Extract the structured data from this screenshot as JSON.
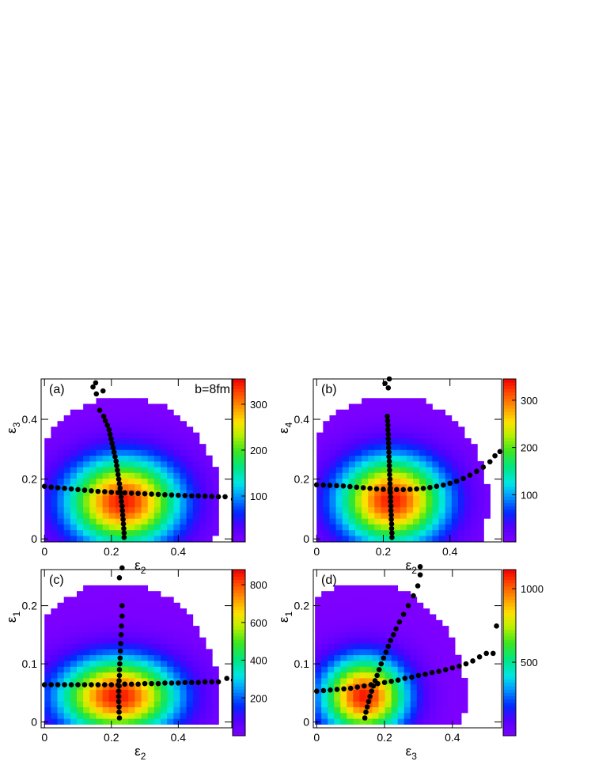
{
  "chart_data": [
    {
      "id": "a",
      "type": "heatmap",
      "panel_label": "(a)",
      "annotation": "b=8fm",
      "xlabel": "ε2",
      "ylabel": "ε3",
      "xlim": [
        -0.01,
        0.56
      ],
      "ylim": [
        -0.01,
        0.535
      ],
      "xticks": [
        {
          "v": 0,
          "label": "0"
        },
        {
          "v": 0.2,
          "label": "0.2"
        },
        {
          "v": 0.4,
          "label": "0.4"
        }
      ],
      "yticks": [
        {
          "v": 0,
          "label": "0"
        },
        {
          "v": 0.2,
          "label": "0.2"
        },
        {
          "v": 0.4,
          "label": "0.4"
        }
      ],
      "colorbar": {
        "min": 0,
        "max": 355,
        "ticks": [
          {
            "v": 100,
            "label": "100"
          },
          {
            "v": 200,
            "label": "200"
          },
          {
            "v": 300,
            "label": "300"
          }
        ]
      },
      "density": {
        "cx": 0.235,
        "cy": 0.125,
        "sx": 0.115,
        "sy": 0.1,
        "peak": 345,
        "nx": 28,
        "ny": 26,
        "xmin": 0.0,
        "xmax": 0.54,
        "ymin": -0.008,
        "ymax": 0.49,
        "rx": 0.29,
        "ry": 0.35
      },
      "profile_x": {
        "x": [
          0.0,
          0.02,
          0.04,
          0.06,
          0.08,
          0.1,
          0.12,
          0.14,
          0.16,
          0.18,
          0.2,
          0.22,
          0.24,
          0.26,
          0.28,
          0.3,
          0.32,
          0.34,
          0.36,
          0.38,
          0.4,
          0.42,
          0.44,
          0.46,
          0.48,
          0.5,
          0.52,
          0.54,
          0.565
        ],
        "y": [
          0.176,
          0.173,
          0.171,
          0.169,
          0.167,
          0.165,
          0.163,
          0.161,
          0.159,
          0.158,
          0.156,
          0.155,
          0.154,
          0.153,
          0.152,
          0.151,
          0.15,
          0.149,
          0.148,
          0.147,
          0.146,
          0.145,
          0.144,
          0.144,
          0.143,
          0.142,
          0.141,
          0.141,
          0.133
        ]
      },
      "profile_y": {
        "x": [
          0.238,
          0.238,
          0.237,
          0.236,
          0.235,
          0.234,
          0.233,
          0.232,
          0.23,
          0.229,
          0.227,
          0.226,
          0.224,
          0.222,
          0.22,
          0.218,
          0.216,
          0.214,
          0.211,
          0.208,
          0.205,
          0.202,
          0.199,
          0.196,
          0.193,
          0.188,
          0.182,
          0.177,
          0.165,
          0.155
        ],
        "y": [
          0.005,
          0.02,
          0.035,
          0.05,
          0.065,
          0.08,
          0.095,
          0.11,
          0.125,
          0.14,
          0.155,
          0.17,
          0.185,
          0.2,
          0.215,
          0.23,
          0.245,
          0.26,
          0.275,
          0.29,
          0.305,
          0.32,
          0.335,
          0.35,
          0.365,
          0.38,
          0.395,
          0.41,
          0.43,
          0.485
        ]
      },
      "extra_points": [
        [
          0.153,
          0.522
        ],
        [
          0.145,
          0.508
        ],
        [
          0.175,
          0.495
        ]
      ]
    },
    {
      "id": "b",
      "type": "heatmap",
      "panel_label": "(b)",
      "annotation": "",
      "xlabel": "ε2",
      "ylabel": "ε4",
      "xlim": [
        -0.01,
        0.555
      ],
      "ylim": [
        -0.01,
        0.535
      ],
      "xticks": [
        {
          "v": 0,
          "label": "0"
        },
        {
          "v": 0.2,
          "label": "0.2"
        },
        {
          "v": 0.4,
          "label": "0.4"
        }
      ],
      "yticks": [
        {
          "v": 0,
          "label": "0"
        },
        {
          "v": 0.2,
          "label": "0.2"
        },
        {
          "v": 0.4,
          "label": "0.4"
        }
      ],
      "colorbar": {
        "min": 0,
        "max": 345,
        "ticks": [
          {
            "v": 100,
            "label": "100"
          },
          {
            "v": 200,
            "label": "200"
          },
          {
            "v": 300,
            "label": "300"
          }
        ]
      },
      "density": {
        "cx": 0.225,
        "cy": 0.13,
        "sx": 0.11,
        "sy": 0.1,
        "peak": 335,
        "nx": 28,
        "ny": 26,
        "xmin": 0.0,
        "xmax": 0.54,
        "ymin": -0.008,
        "ymax": 0.49,
        "rx": 0.29,
        "ry": 0.35
      },
      "profile_x": {
        "x": [
          0.0,
          0.02,
          0.04,
          0.06,
          0.08,
          0.1,
          0.12,
          0.14,
          0.16,
          0.18,
          0.2,
          0.22,
          0.24,
          0.26,
          0.28,
          0.3,
          0.32,
          0.34,
          0.36,
          0.38,
          0.4,
          0.42,
          0.44,
          0.46,
          0.48,
          0.5,
          0.52,
          0.535,
          0.55
        ],
        "y": [
          0.181,
          0.18,
          0.179,
          0.178,
          0.177,
          0.175,
          0.173,
          0.171,
          0.169,
          0.167,
          0.166,
          0.165,
          0.165,
          0.165,
          0.166,
          0.167,
          0.169,
          0.172,
          0.176,
          0.18,
          0.186,
          0.193,
          0.202,
          0.213,
          0.226,
          0.24,
          0.258,
          0.278,
          0.292
        ]
      },
      "profile_y": {
        "x": [
          0.226,
          0.226,
          0.225,
          0.225,
          0.224,
          0.224,
          0.223,
          0.223,
          0.222,
          0.222,
          0.221,
          0.221,
          0.22,
          0.22,
          0.219,
          0.219,
          0.218,
          0.218,
          0.217,
          0.217,
          0.216,
          0.216,
          0.215,
          0.215,
          0.214,
          0.214,
          0.213,
          0.212,
          0.215,
          0.205
        ],
        "y": [
          0.005,
          0.02,
          0.035,
          0.05,
          0.065,
          0.08,
          0.095,
          0.11,
          0.125,
          0.14,
          0.155,
          0.17,
          0.185,
          0.2,
          0.215,
          0.23,
          0.245,
          0.26,
          0.275,
          0.29,
          0.305,
          0.32,
          0.335,
          0.35,
          0.365,
          0.38,
          0.395,
          0.41,
          0.505,
          0.52
        ]
      },
      "extra_points": [
        [
          0.218,
          0.535
        ]
      ]
    },
    {
      "id": "c",
      "type": "heatmap",
      "panel_label": "(c)",
      "annotation": "",
      "xlabel": "ε2",
      "ylabel": "ε1",
      "xlim": [
        -0.01,
        0.56
      ],
      "ylim": [
        -0.01,
        0.262
      ],
      "xticks": [
        {
          "v": 0,
          "label": "0"
        },
        {
          "v": 0.2,
          "label": "0.2"
        },
        {
          "v": 0.4,
          "label": "0.4"
        }
      ],
      "yticks": [
        {
          "v": 0,
          "label": "0"
        },
        {
          "v": 0.1,
          "label": "0.1"
        },
        {
          "v": 0.2,
          "label": "0.2"
        }
      ],
      "colorbar": {
        "min": 0,
        "max": 880,
        "ticks": [
          {
            "v": 200,
            "label": "200"
          },
          {
            "v": 400,
            "label": "400"
          },
          {
            "v": 600,
            "label": "600"
          },
          {
            "v": 800,
            "label": "800"
          }
        ]
      },
      "density": {
        "cx": 0.22,
        "cy": 0.045,
        "sx": 0.12,
        "sy": 0.045,
        "peak": 860,
        "nx": 28,
        "ny": 24,
        "xmin": 0.0,
        "xmax": 0.54,
        "ymin": -0.004,
        "ymax": 0.235,
        "rx": 0.3,
        "ry": 0.195
      },
      "profile_x": {
        "x": [
          0.0,
          0.02,
          0.04,
          0.06,
          0.08,
          0.1,
          0.12,
          0.14,
          0.16,
          0.18,
          0.2,
          0.22,
          0.24,
          0.26,
          0.28,
          0.3,
          0.32,
          0.34,
          0.36,
          0.38,
          0.4,
          0.42,
          0.44,
          0.46,
          0.48,
          0.5,
          0.52,
          0.545,
          0.565
        ],
        "y": [
          0.064,
          0.064,
          0.064,
          0.064,
          0.064,
          0.064,
          0.064,
          0.064,
          0.064,
          0.064,
          0.064,
          0.064,
          0.065,
          0.065,
          0.065,
          0.066,
          0.066,
          0.066,
          0.067,
          0.067,
          0.067,
          0.068,
          0.068,
          0.068,
          0.069,
          0.069,
          0.069,
          0.075,
          0.072
        ]
      },
      "profile_y": {
        "x": [
          0.224,
          0.223,
          0.223,
          0.222,
          0.222,
          0.222,
          0.223,
          0.223,
          0.224,
          0.224,
          0.225,
          0.226,
          0.227,
          0.228,
          0.229,
          0.23,
          0.232,
          0.232,
          0.224,
          0.232
        ],
        "y": [
          0.007,
          0.017,
          0.026,
          0.035,
          0.044,
          0.053,
          0.062,
          0.071,
          0.08,
          0.09,
          0.1,
          0.11,
          0.122,
          0.135,
          0.15,
          0.165,
          0.182,
          0.2,
          0.248,
          0.265
        ]
      },
      "extra_points": []
    },
    {
      "id": "d",
      "type": "heatmap",
      "panel_label": "(d)",
      "annotation": "",
      "xlabel": "ε3",
      "ylabel": "ε1",
      "xlim": [
        -0.01,
        0.545
      ],
      "ylim": [
        -0.01,
        0.262
      ],
      "xticks": [
        {
          "v": 0,
          "label": "0"
        },
        {
          "v": 0.2,
          "label": "0.2"
        },
        {
          "v": 0.4,
          "label": "0.4"
        }
      ],
      "yticks": [
        {
          "v": 0,
          "label": "0"
        },
        {
          "v": 0.1,
          "label": "0.1"
        },
        {
          "v": 0.2,
          "label": "0.2"
        }
      ],
      "colorbar": {
        "min": 0,
        "max": 1130,
        "ticks": [
          {
            "v": 500,
            "label": "500"
          },
          {
            "v": 1000,
            "label": "1000"
          }
        ]
      },
      "density": {
        "cx": 0.14,
        "cy": 0.045,
        "sx": 0.085,
        "sy": 0.045,
        "peak": 1100,
        "nx": 28,
        "ny": 24,
        "xmin": -0.005,
        "xmax": 0.52,
        "ymin": -0.004,
        "ymax": 0.235,
        "rx": 0.3,
        "ry": 0.195
      },
      "profile_x": {
        "x": [
          0.0,
          0.02,
          0.04,
          0.06,
          0.08,
          0.1,
          0.12,
          0.14,
          0.16,
          0.18,
          0.2,
          0.22,
          0.24,
          0.26,
          0.28,
          0.3,
          0.32,
          0.34,
          0.36,
          0.38,
          0.4,
          0.42,
          0.44,
          0.46,
          0.48,
          0.5,
          0.52,
          0.53
        ],
        "y": [
          0.053,
          0.054,
          0.055,
          0.056,
          0.057,
          0.058,
          0.06,
          0.062,
          0.064,
          0.066,
          0.068,
          0.07,
          0.072,
          0.075,
          0.077,
          0.08,
          0.082,
          0.085,
          0.087,
          0.09,
          0.093,
          0.096,
          0.1,
          0.105,
          0.112,
          0.118,
          0.118,
          0.165
        ]
      },
      "profile_y": {
        "x": [
          0.142,
          0.145,
          0.149,
          0.153,
          0.157,
          0.162,
          0.167,
          0.172,
          0.178,
          0.184,
          0.19,
          0.197,
          0.204,
          0.211,
          0.218,
          0.226,
          0.234,
          0.244,
          0.256,
          0.27,
          0.285,
          0.298,
          0.305
        ],
        "y": [
          0.007,
          0.017,
          0.026,
          0.035,
          0.044,
          0.053,
          0.062,
          0.071,
          0.08,
          0.09,
          0.1,
          0.11,
          0.12,
          0.13,
          0.14,
          0.15,
          0.16,
          0.172,
          0.185,
          0.2,
          0.217,
          0.234,
          0.253
        ]
      },
      "extra_points": [
        [
          0.305,
          0.267
        ]
      ]
    }
  ]
}
